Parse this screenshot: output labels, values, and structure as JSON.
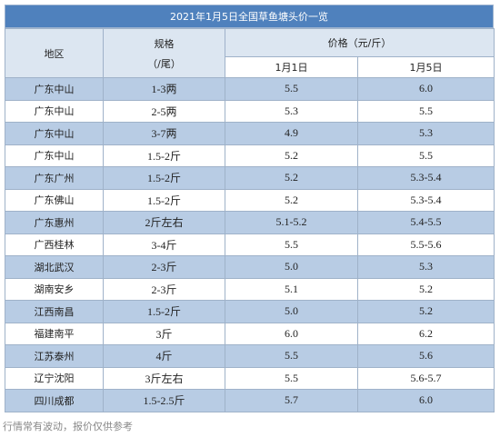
{
  "title": "2021年1月5日全国草鱼塘头价一览",
  "header": {
    "region": "地区",
    "spec": "规格",
    "spec_unit": "（/尾）",
    "price": "价格（元/斤）",
    "date1": "1月1日",
    "date2": "1月5日"
  },
  "rows": [
    [
      "广东中山",
      "1-3两",
      "5.5",
      "6.0"
    ],
    [
      "广东中山",
      "2-5两",
      "5.3",
      "5.5"
    ],
    [
      "广东中山",
      "3-7两",
      "4.9",
      "5.3"
    ],
    [
      "广东中山",
      "1.5-2斤",
      "5.2",
      "5.5"
    ],
    [
      "广东广州",
      "1.5-2斤",
      "5.2",
      "5.3-5.4"
    ],
    [
      "广东佛山",
      "1.5-2斤",
      "5.2",
      "5.3-5.4"
    ],
    [
      "广东惠州",
      "2斤左右",
      "5.1-5.2",
      "5.4-5.5"
    ],
    [
      "广西桂林",
      "3-4斤",
      "5.5",
      "5.5-5.6"
    ],
    [
      "湖北武汉",
      "2-3斤",
      "5.0",
      "5.3"
    ],
    [
      "湖南安乡",
      "2-3斤",
      "5.1",
      "5.2"
    ],
    [
      "江西南昌",
      "1.5-2斤",
      "5.0",
      "5.2"
    ],
    [
      "福建南平",
      "3斤",
      "6.0",
      "6.2"
    ],
    [
      "江苏泰州",
      "4斤",
      "5.5",
      "5.6"
    ],
    [
      "辽宁沈阳",
      "3斤左右",
      "5.5",
      "5.6-5.7"
    ],
    [
      "四川成都",
      "1.5-2.5斤",
      "5.7",
      "6.0"
    ]
  ],
  "footer": "行情常有波动，报价仅供参考"
}
